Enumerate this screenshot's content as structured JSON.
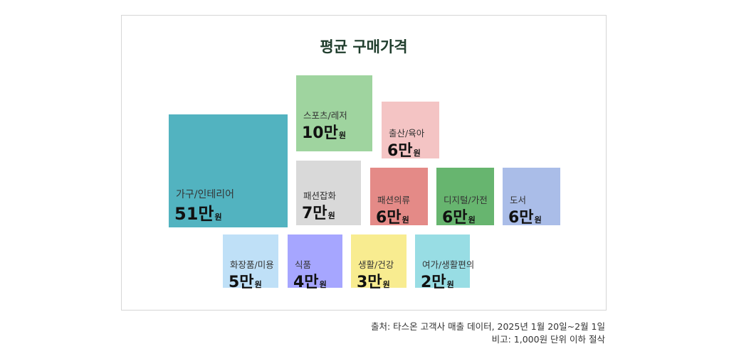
{
  "chart_data": {
    "type": "treemap",
    "title": "평균 구매가격",
    "unit": "원",
    "categories": [
      {
        "name": "가구/인테리어",
        "value": 51,
        "label": "51만",
        "color": "#52b3c0"
      },
      {
        "name": "스포츠/레저",
        "value": 10,
        "label": "10만",
        "color": "#9fd49f"
      },
      {
        "name": "출산/육아",
        "value": 6,
        "label": "6만",
        "color": "#f4c4c4"
      },
      {
        "name": "패션잡화",
        "value": 7,
        "label": "7만",
        "color": "#d9d9d9"
      },
      {
        "name": "패션의류",
        "value": 6,
        "label": "6만",
        "color": "#e48a87"
      },
      {
        "name": "디지털/가전",
        "value": 6,
        "label": "6만",
        "color": "#67b56f"
      },
      {
        "name": "도서",
        "value": 6,
        "label": "6만",
        "color": "#aabde8"
      },
      {
        "name": "화장품/미용",
        "value": 5,
        "label": "5만",
        "color": "#bfe0f7"
      },
      {
        "name": "식품",
        "value": 4,
        "label": "4만",
        "color": "#a6a6ff"
      },
      {
        "name": "생활/건강",
        "value": 3,
        "label": "3만",
        "color": "#f8ec90"
      },
      {
        "name": "여가/생활편의",
        "value": 2,
        "label": "2만",
        "color": "#98dde4"
      }
    ]
  },
  "footer": {
    "source": "출처: 타스온 고객사 매출 데이터, 2025년 1월 20일~2월 1일",
    "note": "비고: 1,000원 단위 이하 절삭"
  }
}
